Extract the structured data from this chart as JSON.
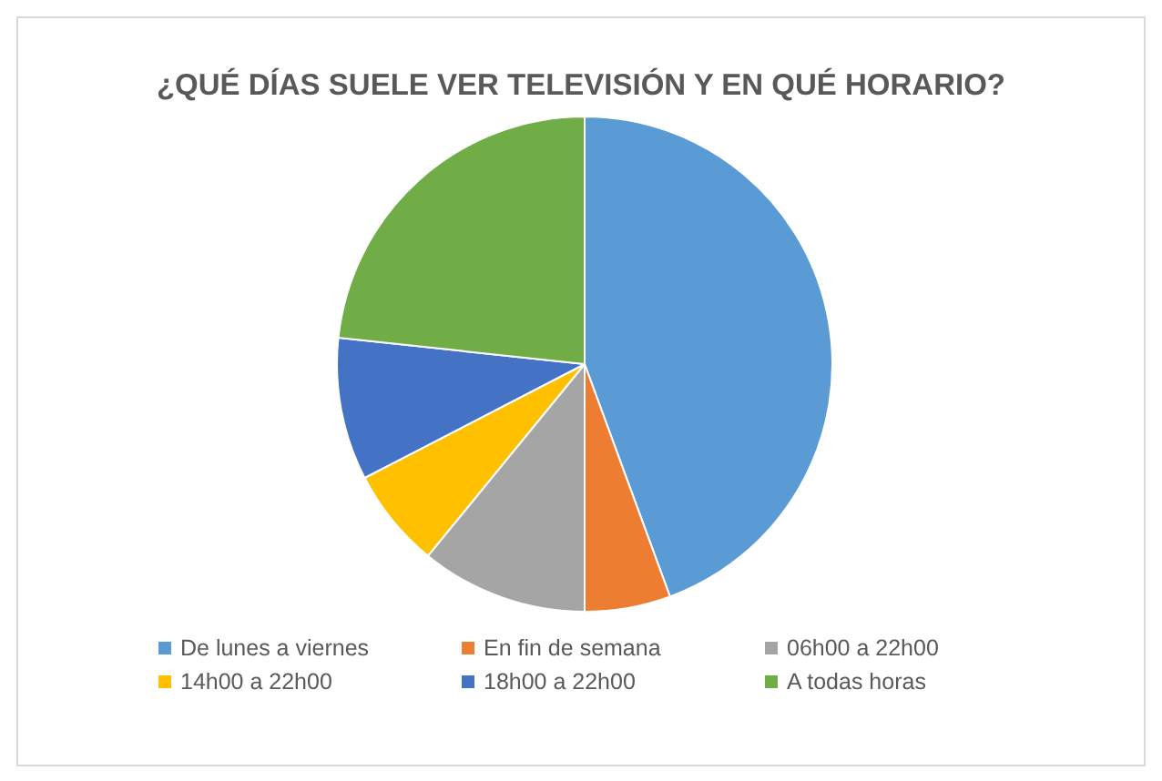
{
  "chart_data": {
    "type": "pie",
    "title": "¿QUÉ DÍAS SUELE VER TELEVISIÓN Y EN QUÉ HORARIO?",
    "categories": [
      "De lunes a viernes",
      "En fin de semana",
      "06h00 a 22h00",
      "14h00 a 22h00",
      "18h00 a 22h00",
      "A todas horas"
    ],
    "values": [
      44.4,
      5.6,
      10.9,
      6.5,
      9.3,
      23.3
    ],
    "colors": [
      "#5b9bd5",
      "#ed7d31",
      "#a5a5a5",
      "#ffc000",
      "#4472c4",
      "#70ad47"
    ],
    "legend": "bottom"
  }
}
